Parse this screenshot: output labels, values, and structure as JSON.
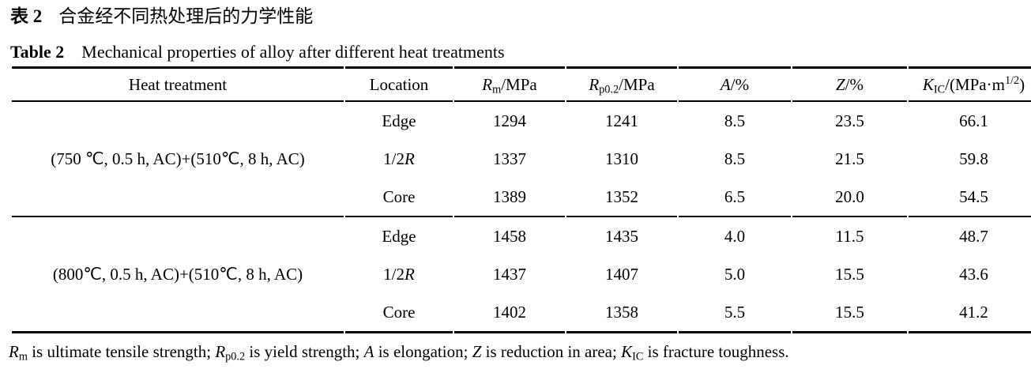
{
  "colors": {
    "background": "#ffffff",
    "text": "#000000",
    "rule": "#000000"
  },
  "title": {
    "zh_label": "表 2",
    "zh_text": "合金经不同热处理后的力学性能",
    "en_label": "Table 2",
    "en_text": "Mechanical properties of alloy after different heat treatments"
  },
  "table": {
    "columns": [
      {
        "key": "treatment",
        "label_rich": [
          {
            "t": "Heat treatment"
          }
        ]
      },
      {
        "key": "location",
        "label_rich": [
          {
            "t": "Location"
          }
        ]
      },
      {
        "key": "rm",
        "label_rich": [
          {
            "t": "R",
            "s": "i"
          },
          {
            "t": "m",
            "s": "sub"
          },
          {
            "t": "/MPa"
          }
        ]
      },
      {
        "key": "rp02",
        "label_rich": [
          {
            "t": "R",
            "s": "i"
          },
          {
            "t": "p0.2",
            "s": "sub"
          },
          {
            "t": "/MPa"
          }
        ]
      },
      {
        "key": "a",
        "label_rich": [
          {
            "t": "A",
            "s": "i"
          },
          {
            "t": "/%"
          }
        ]
      },
      {
        "key": "z",
        "label_rich": [
          {
            "t": "Z",
            "s": "i"
          },
          {
            "t": "/%"
          }
        ]
      },
      {
        "key": "kic",
        "label_rich": [
          {
            "t": "K",
            "s": "i"
          },
          {
            "t": "IC",
            "s": "sub"
          },
          {
            "t": "/(MPa·m"
          },
          {
            "t": "1/2",
            "s": "sup"
          },
          {
            "t": ")"
          }
        ]
      }
    ],
    "groups": [
      {
        "treatment": "(750 ℃, 0.5 h, AC)+(510℃, 8 h, AC)",
        "rows": [
          {
            "location_rich": [
              {
                "t": "Edge"
              }
            ],
            "rm": "1294",
            "rp02": "1241",
            "a": "8.5",
            "z": "23.5",
            "kic": "66.1"
          },
          {
            "location_rich": [
              {
                "t": "1/2"
              },
              {
                "t": "R",
                "s": "i"
              }
            ],
            "rm": "1337",
            "rp02": "1310",
            "a": "8.5",
            "z": "21.5",
            "kic": "59.8"
          },
          {
            "location_rich": [
              {
                "t": "Core"
              }
            ],
            "rm": "1389",
            "rp02": "1352",
            "a": "6.5",
            "z": "20.0",
            "kic": "54.5"
          }
        ]
      },
      {
        "treatment": "(800℃, 0.5 h, AC)+(510℃, 8 h, AC)",
        "rows": [
          {
            "location_rich": [
              {
                "t": "Edge"
              }
            ],
            "rm": "1458",
            "rp02": "1435",
            "a": "4.0",
            "z": "11.5",
            "kic": "48.7"
          },
          {
            "location_rich": [
              {
                "t": "1/2"
              },
              {
                "t": "R",
                "s": "i"
              }
            ],
            "rm": "1437",
            "rp02": "1407",
            "a": "5.0",
            "z": "15.5",
            "kic": "43.6"
          },
          {
            "location_rich": [
              {
                "t": "Core"
              }
            ],
            "rm": "1402",
            "rp02": "1358",
            "a": "5.5",
            "z": "15.5",
            "kic": "41.2"
          }
        ]
      }
    ]
  },
  "footnote_rich": [
    {
      "t": "R",
      "s": "i"
    },
    {
      "t": "m",
      "s": "sub"
    },
    {
      "t": " is ultimate tensile strength; "
    },
    {
      "t": "R",
      "s": "i"
    },
    {
      "t": "p0.2",
      "s": "sub"
    },
    {
      "t": " is yield strength; "
    },
    {
      "t": "A",
      "s": "i"
    },
    {
      "t": " is elongation; "
    },
    {
      "t": "Z",
      "s": "i"
    },
    {
      "t": " is reduction in area; "
    },
    {
      "t": "K",
      "s": "i"
    },
    {
      "t": "IC",
      "s": "sub"
    },
    {
      "t": " is fracture toughness."
    }
  ]
}
